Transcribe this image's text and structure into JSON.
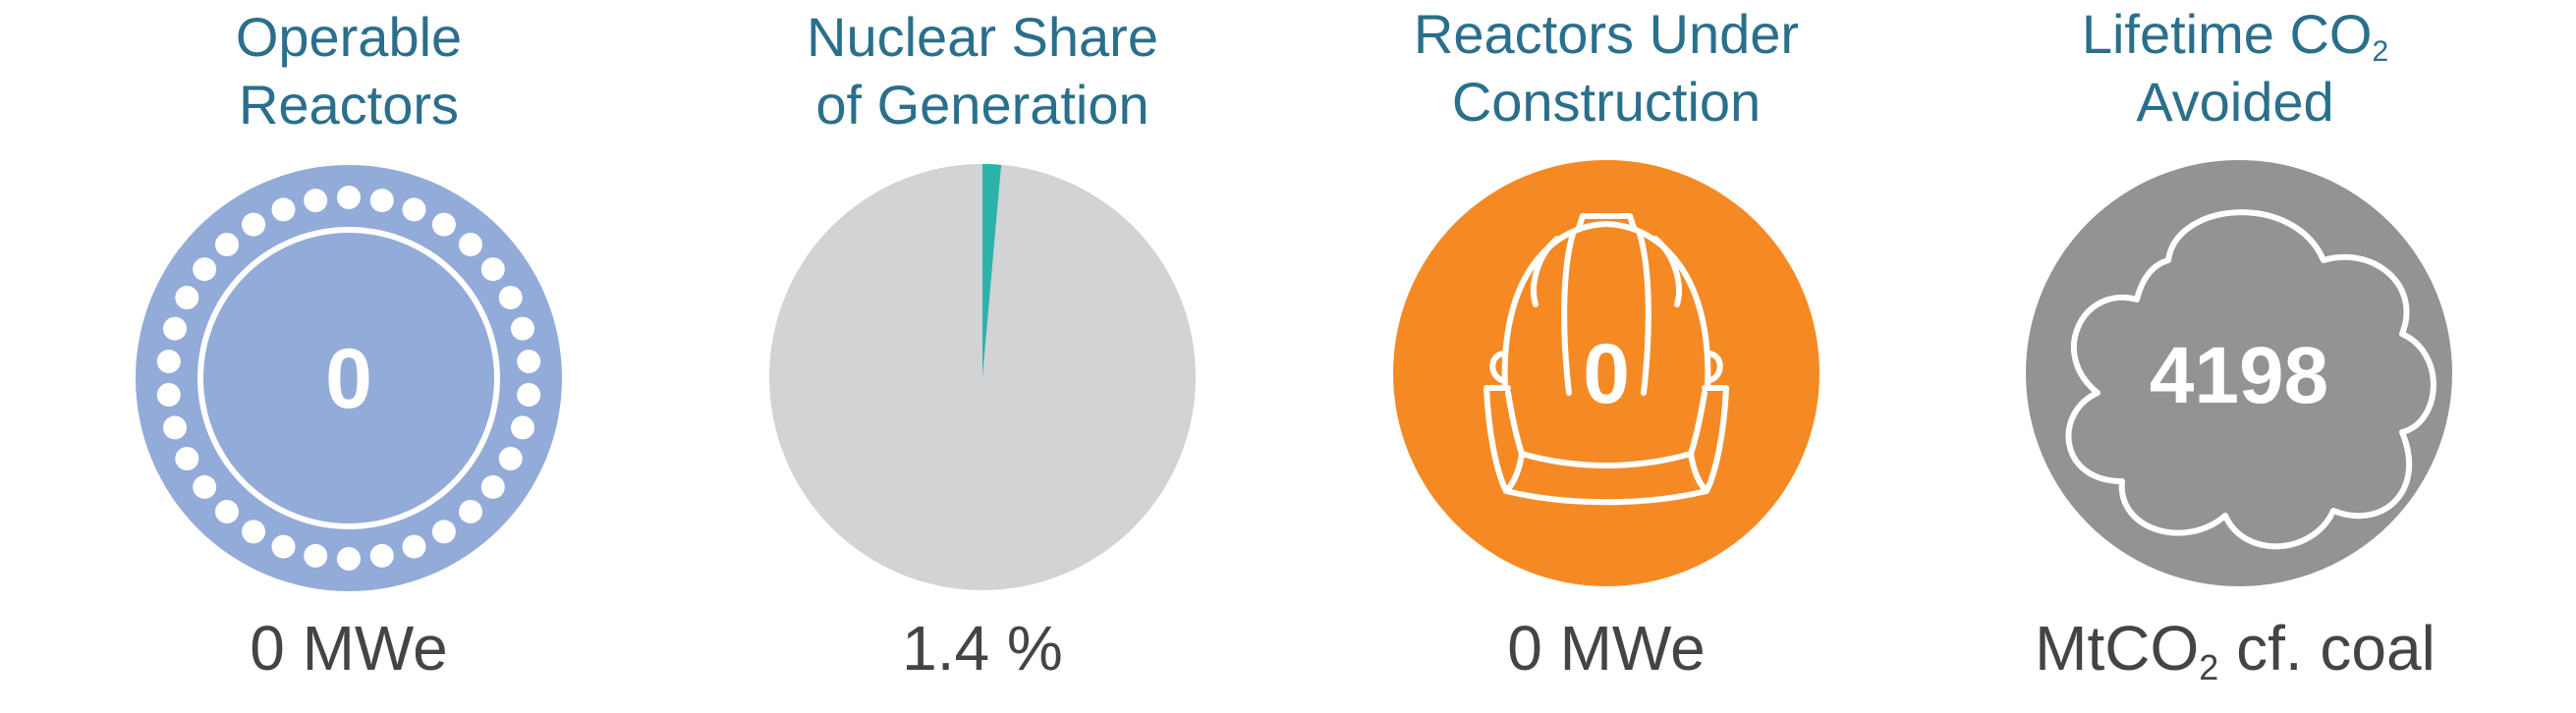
{
  "colors": {
    "title": "#2a6f8c",
    "caption": "#444444",
    "reactors": "#93abd8",
    "share_bg": "#d1d3d4",
    "share_fill": "#2bb3aa",
    "construction": "#f58a24",
    "co2": "#939393"
  },
  "panels": {
    "operable": {
      "title_line1": "Operable",
      "title_line2": "Reactors",
      "value": "0",
      "caption": "0 MWe",
      "icon": "reactor-core-icon"
    },
    "share": {
      "title_line1": "Nuclear Share",
      "title_line2": "of Generation",
      "caption": "1.4 %",
      "share_percent": 1.4,
      "icon": "pie-chart-icon"
    },
    "construction": {
      "title_line1": "Reactors Under",
      "title_line2": "Construction",
      "value": "0",
      "caption": "0 MWe",
      "icon": "hard-hat-icon"
    },
    "co2": {
      "title_line1": "Lifetime CO",
      "title_line1_sub": "2",
      "title_line2": "Avoided",
      "value": "4198",
      "caption_main": "MtCO",
      "caption_sub": "2",
      "caption_tail": " cf. coal",
      "icon": "cloud-icon"
    }
  }
}
